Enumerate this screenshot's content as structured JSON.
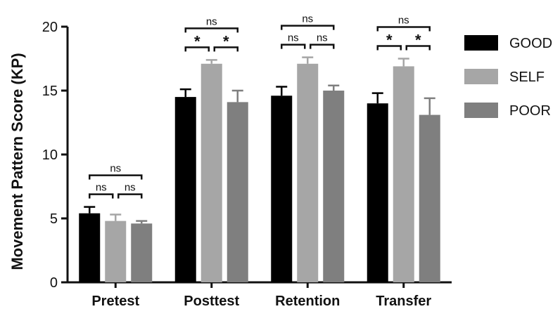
{
  "chart_data": {
    "type": "bar",
    "ylabel": "Movement Pattern Score (KP)",
    "ylim": [
      0,
      20
    ],
    "yticks": [
      0,
      5,
      10,
      15,
      20
    ],
    "categories": [
      "Pretest",
      "Posttest",
      "Retention",
      "Transfer"
    ],
    "series": [
      {
        "name": "GOOD",
        "color": "#000000",
        "values": [
          5.4,
          14.5,
          14.6,
          14.0
        ],
        "errors": [
          0.5,
          0.6,
          0.7,
          0.8
        ]
      },
      {
        "name": "SELF",
        "color": "#a6a6a6",
        "values": [
          4.8,
          17.1,
          17.1,
          16.9
        ],
        "errors": [
          0.5,
          0.3,
          0.5,
          0.6
        ]
      },
      {
        "name": "POOR",
        "color": "#7f7f7f",
        "values": [
          4.6,
          14.1,
          15.0,
          13.1
        ],
        "errors": [
          0.2,
          0.9,
          0.4,
          1.3
        ]
      }
    ],
    "legend_position": "right",
    "grid": false,
    "significance": [
      {
        "category": 0,
        "from": 0,
        "to": 1,
        "label": "ns",
        "level": 1
      },
      {
        "category": 0,
        "from": 1,
        "to": 2,
        "label": "ns",
        "level": 1
      },
      {
        "category": 0,
        "from": 0,
        "to": 2,
        "label": "ns",
        "level": 2
      },
      {
        "category": 1,
        "from": 0,
        "to": 1,
        "label": "*",
        "level": 1
      },
      {
        "category": 1,
        "from": 1,
        "to": 2,
        "label": "*",
        "level": 1
      },
      {
        "category": 1,
        "from": 0,
        "to": 2,
        "label": "ns",
        "level": 2
      },
      {
        "category": 2,
        "from": 0,
        "to": 1,
        "label": "ns",
        "level": 1
      },
      {
        "category": 2,
        "from": 1,
        "to": 2,
        "label": "ns",
        "level": 1
      },
      {
        "category": 2,
        "from": 0,
        "to": 2,
        "label": "ns",
        "level": 2
      },
      {
        "category": 3,
        "from": 0,
        "to": 1,
        "label": "*",
        "level": 1
      },
      {
        "category": 3,
        "from": 1,
        "to": 2,
        "label": "*",
        "level": 1
      },
      {
        "category": 3,
        "from": 0,
        "to": 2,
        "label": "ns",
        "level": 2
      }
    ]
  }
}
